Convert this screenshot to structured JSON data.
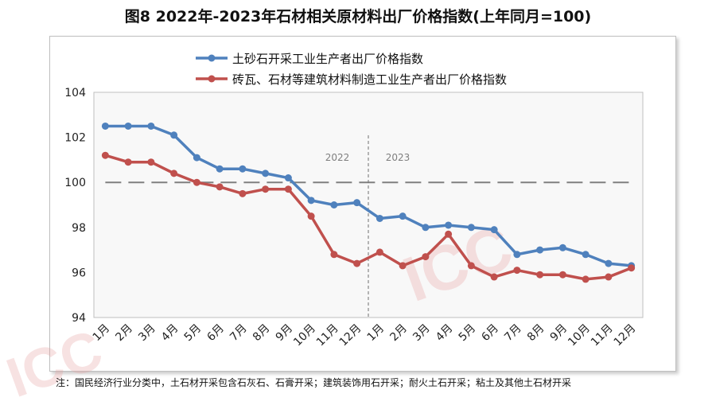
{
  "chart_data": {
    "type": "line",
    "title": "图8  2022年-2023年石材相关原材料出厂价格指数(上年同月=100)",
    "categories": [
      "1月",
      "2月",
      "3月",
      "4月",
      "5月",
      "6月",
      "7月",
      "8月",
      "9月",
      "10月",
      "11月",
      "12月",
      "1月",
      "2月",
      "3月",
      "4月",
      "5月",
      "6月",
      "7月",
      "8月",
      "9月",
      "10月",
      "11月",
      "12月"
    ],
    "year_labels": [
      "2022",
      "2023"
    ],
    "series": [
      {
        "name": "土砂石开采工业生产者出厂价格指数",
        "color": "#4f81bd",
        "values": [
          102.5,
          102.5,
          102.5,
          102.1,
          101.1,
          100.6,
          100.6,
          100.4,
          100.2,
          99.2,
          99.0,
          99.1,
          98.4,
          98.5,
          98.0,
          98.1,
          98.0,
          97.9,
          96.8,
          97.0,
          97.1,
          96.8,
          96.4,
          96.3
        ]
      },
      {
        "name": "砖瓦、石材等建筑材料制造工业生产者出厂价格指数",
        "color": "#c0504d",
        "values": [
          101.2,
          100.9,
          100.9,
          100.4,
          100.0,
          99.8,
          99.5,
          99.7,
          99.7,
          98.5,
          96.8,
          96.4,
          96.9,
          96.3,
          96.7,
          97.7,
          96.3,
          95.8,
          96.1,
          95.9,
          95.9,
          95.7,
          95.8,
          96.2
        ]
      }
    ],
    "ylim": [
      94,
      104
    ],
    "yticks": [
      94,
      96,
      98,
      100,
      102,
      104
    ],
    "reference_line": 100,
    "grid": false,
    "legend": "top"
  },
  "footnote": "注：国民经济行业分类中，土石材开采包含石灰石、石膏开采；建筑装饰用石开采；耐火土石开采；粘土及其他土石材开采"
}
